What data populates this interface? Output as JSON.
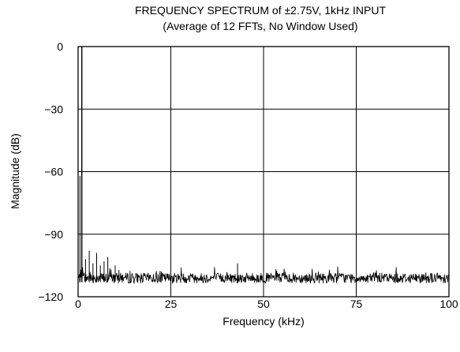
{
  "chart_data": {
    "type": "line",
    "title_line1": "FREQUENCY SPECTRUM of ±2.75V, 1kHz INPUT",
    "title_line2": "(Average of 12 FFTs, No Window Used)",
    "xlabel": "Frequency (kHz)",
    "ylabel": "Magnitude (dB)",
    "xlim": [
      0,
      100
    ],
    "ylim": [
      -120,
      0
    ],
    "x_ticks": [
      0,
      25,
      50,
      75,
      100
    ],
    "x_tick_labels": [
      "0",
      "25",
      "50",
      "75",
      "100"
    ],
    "y_ticks": [
      0,
      -30,
      -60,
      -90,
      -120
    ],
    "y_tick_labels": [
      "0",
      "−30",
      "−60",
      "−90",
      "−120"
    ],
    "grid": true,
    "noise_floor_db": -111,
    "fundamental": {
      "x": 1,
      "y": 0
    },
    "series": [
      {
        "peaks": [
          {
            "x": 0.5,
            "y": -62
          },
          {
            "x": 1,
            "y": 0
          },
          {
            "x": 2,
            "y": -102
          },
          {
            "x": 3,
            "y": -98
          },
          {
            "x": 4,
            "y": -104
          },
          {
            "x": 5,
            "y": -99
          },
          {
            "x": 6,
            "y": -105
          },
          {
            "x": 7,
            "y": -103
          },
          {
            "x": 8,
            "y": -101
          },
          {
            "x": 10,
            "y": -105
          },
          {
            "x": 43,
            "y": -104
          }
        ]
      }
    ]
  }
}
